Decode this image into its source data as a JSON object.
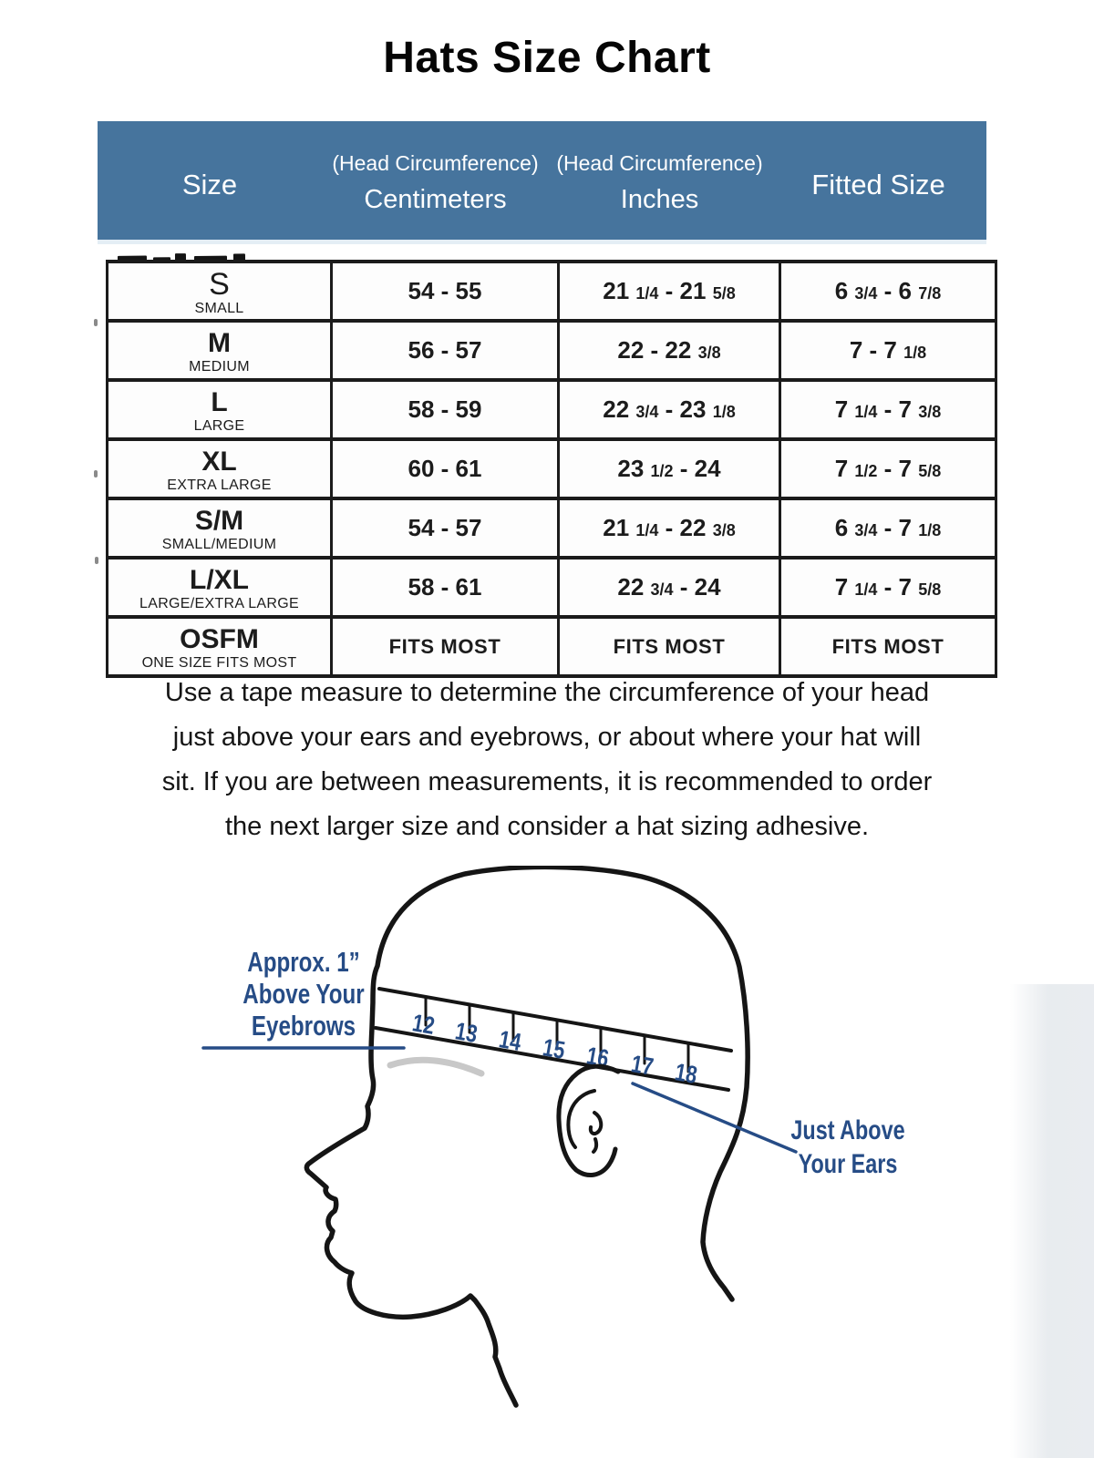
{
  "title": "Hats Size Chart",
  "colors": {
    "header_band": "#46749D",
    "band_text": "#ffffff",
    "table_border": "#1b1b1b",
    "body_text": "#151515",
    "illustration_blue": "#264C86",
    "eyebrow_gray": "#c8c8c8"
  },
  "table": {
    "headers": {
      "size": "Size",
      "cm_note": "(Head Circumference)",
      "cm_unit": "Centimeters",
      "in_note": "(Head Circumference)",
      "in_unit": "Inches",
      "fitted": "Fitted Size"
    },
    "rows": [
      {
        "size": "S",
        "size_label": "SMALL",
        "cm": "54 - 55",
        "inches": "21 1/4 - 21 5/8",
        "fitted": "6 3/4 - 6 7/8"
      },
      {
        "size": "M",
        "size_label": "MEDIUM",
        "cm": "56 - 57",
        "inches": "22 - 22 3/8",
        "fitted": "7 - 7 1/8"
      },
      {
        "size": "L",
        "size_label": "LARGE",
        "cm": "58 - 59",
        "inches": "22 3/4 - 23 1/8",
        "fitted": "7 1/4 - 7 3/8"
      },
      {
        "size": "XL",
        "size_label": "EXTRA LARGE",
        "cm": "60 - 61",
        "inches": "23 1/2 - 24",
        "fitted": "7 1/2 - 7 5/8"
      },
      {
        "size": "S/M",
        "size_label": "SMALL/MEDIUM",
        "cm": "54 - 57",
        "inches": "21 1/4 - 22 3/8",
        "fitted": "6 3/4 - 7 1/8"
      },
      {
        "size": "L/XL",
        "size_label": "LARGE/EXTRA LARGE",
        "cm": "58 - 61",
        "inches": "22 3/4 - 24",
        "fitted": "7 1/4 - 7 5/8"
      },
      {
        "size": "OSFM",
        "size_label": "ONE SIZE FITS MOST",
        "cm": "FITS MOST",
        "inches": "FITS MOST",
        "fitted": "FITS MOST"
      }
    ]
  },
  "note_lines": [
    "Use a tape measure to determine the circumference of your head",
    "just above your ears and eyebrows, or about where your hat will",
    "sit. If you are between measurements, it is recommended to order",
    "the next larger size and consider a hat sizing adhesive."
  ],
  "illustration": {
    "tape_numbers": [
      "12",
      "13",
      "14",
      "15",
      "16",
      "17",
      "18"
    ],
    "eyebrow_label_lines": [
      "Approx. 1”",
      "Above Your",
      "Eyebrows"
    ],
    "ear_label_lines": [
      "Just Above",
      "Your Ears"
    ]
  }
}
